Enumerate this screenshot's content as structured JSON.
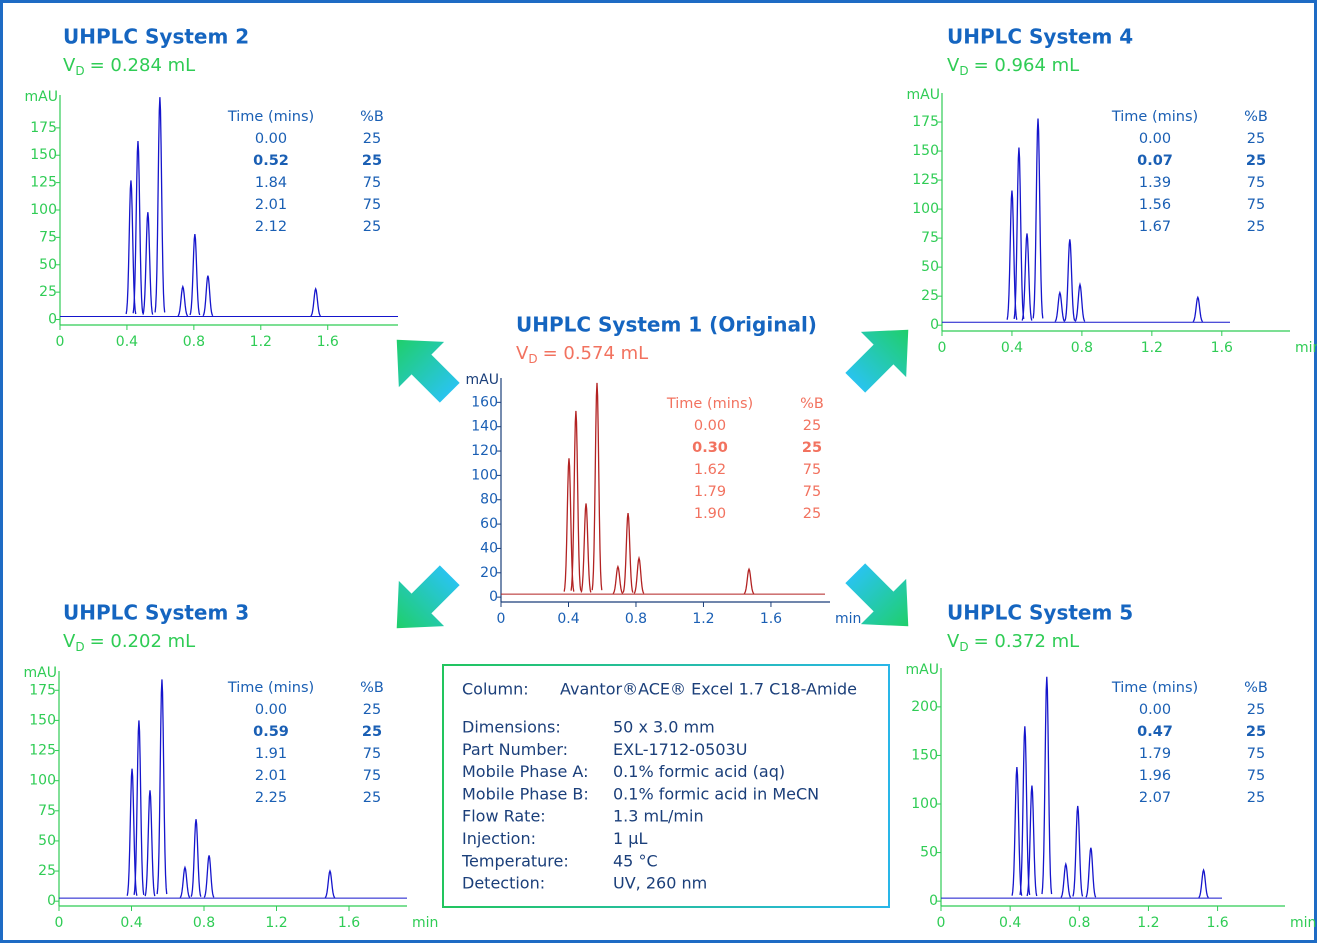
{
  "chart_data": [
    {
      "type": "chromatogram",
      "title": "UHPLC System 2",
      "vd_symbol": "V",
      "vd_sub": "D",
      "vd_value": "= 0.284 mL",
      "y_label": "mAU",
      "peaks": {
        "time": [
          0.424,
          0.466,
          0.525,
          0.597,
          0.734,
          0.806,
          0.884,
          1.528
        ],
        "height": [
          127,
          163,
          98,
          203,
          30,
          78,
          40,
          28
        ]
      },
      "xlim": [
        0,
        2.02
      ],
      "ylim": [
        -5,
        205
      ],
      "xticks": [
        0,
        0.4,
        0.8,
        1.2,
        1.6
      ],
      "yticks": [
        0,
        25,
        50,
        75,
        100,
        125,
        150,
        175
      ],
      "trace_color": "#1515cc",
      "axis_color": "#2fcc55",
      "tick_label_color": "#2fcc55",
      "title_color": "#1565c0",
      "vd_color": "#2fcc55",
      "table_color": "#1a5fb4",
      "gradient_table": {
        "header": [
          "Time (mins)",
          "%B"
        ],
        "rows": [
          [
            "0.00",
            "25"
          ],
          [
            "0.52",
            "25"
          ],
          [
            "1.84",
            "75"
          ],
          [
            "2.01",
            "75"
          ],
          [
            "2.12",
            "25"
          ]
        ]
      }
    },
    {
      "type": "chromatogram",
      "title": "UHPLC System 4",
      "vd_symbol": "V",
      "vd_sub": "D",
      "vd_value": "= 0.964 mL",
      "y_label": "mAU",
      "x_label": "min",
      "peaks": {
        "time": [
          0.4,
          0.44,
          0.486,
          0.549,
          0.674,
          0.731,
          0.789,
          1.463
        ],
        "height": [
          116,
          153,
          79,
          178,
          28,
          74,
          35,
          24
        ]
      },
      "xlim": [
        0,
        1.99
      ],
      "ylim": [
        -5,
        200
      ],
      "xticks": [
        0,
        0.4,
        0.8,
        1.2,
        1.6
      ],
      "yticks": [
        0,
        25,
        50,
        75,
        100,
        125,
        150,
        175
      ],
      "trace_color": "#1515cc",
      "axis_color": "#2fcc55",
      "tick_label_color": "#2fcc55",
      "title_color": "#1565c0",
      "vd_color": "#2fcc55",
      "table_color": "#1a5fb4",
      "gradient_table": {
        "header": [
          "Time (mins)",
          "%B"
        ],
        "rows": [
          [
            "0.00",
            "25"
          ],
          [
            "0.07",
            "25"
          ],
          [
            "1.39",
            "75"
          ],
          [
            "1.56",
            "75"
          ],
          [
            "1.67",
            "25"
          ]
        ]
      }
    },
    {
      "type": "chromatogram",
      "title": "UHPLC System 1 (Original)",
      "vd_symbol": "V",
      "vd_sub": "D",
      "vd_value": "= 0.574 mL",
      "y_label": "mAU",
      "x_label": "min",
      "peaks": {
        "time": [
          0.403,
          0.444,
          0.504,
          0.569,
          0.693,
          0.753,
          0.818,
          1.47
        ],
        "height": [
          114,
          153,
          77,
          176,
          25,
          69,
          32,
          23
        ]
      },
      "xlim": [
        0,
        1.95
      ],
      "ylim": [
        -4,
        180
      ],
      "xticks": [
        0,
        0.4,
        0.8,
        1.2,
        1.6
      ],
      "yticks": [
        0,
        20,
        40,
        60,
        80,
        100,
        120,
        140,
        160
      ],
      "trace_color": "#b22222",
      "axis_color": "#1b3f7a",
      "tick_label_color": "#1a5fb4",
      "title_color": "#1565c0",
      "vd_color": "#f2725f",
      "table_color": "#f2725f",
      "gradient_table": {
        "header": [
          "Time (mins)",
          "%B"
        ],
        "rows": [
          [
            "0.00",
            "25"
          ],
          [
            "0.30",
            "25"
          ],
          [
            "1.62",
            "75"
          ],
          [
            "1.79",
            "75"
          ],
          [
            "1.90",
            "25"
          ]
        ]
      }
    },
    {
      "type": "chromatogram",
      "title": "UHPLC System 3",
      "vd_symbol": "V",
      "vd_sub": "D",
      "vd_value": "= 0.202 mL",
      "y_label": "mAU",
      "x_label": "min",
      "peaks": {
        "time": [
          0.403,
          0.441,
          0.502,
          0.568,
          0.695,
          0.756,
          0.828,
          1.495
        ],
        "height": [
          110,
          150,
          92,
          184,
          28,
          68,
          38,
          25
        ]
      },
      "xlim": [
        0,
        1.92
      ],
      "ylim": [
        -4,
        191
      ],
      "xticks": [
        0,
        0.4,
        0.8,
        1.2,
        1.6
      ],
      "yticks": [
        0,
        25,
        50,
        75,
        100,
        125,
        150,
        175
      ],
      "trace_color": "#1515cc",
      "axis_color": "#2fcc55",
      "tick_label_color": "#2fcc55",
      "title_color": "#1565c0",
      "vd_color": "#2fcc55",
      "table_color": "#1a5fb4",
      "gradient_table": {
        "header": [
          "Time (mins)",
          "%B"
        ],
        "rows": [
          [
            "0.00",
            "25"
          ],
          [
            "0.59",
            "25"
          ],
          [
            "1.91",
            "75"
          ],
          [
            "2.01",
            "75"
          ],
          [
            "2.25",
            "25"
          ]
        ]
      }
    },
    {
      "type": "chromatogram",
      "title": "UHPLC System 5",
      "vd_symbol": "V",
      "vd_sub": "D",
      "vd_value": "= 0.372 mL",
      "y_label": "mAU",
      "x_label": "min",
      "peaks": {
        "time": [
          0.439,
          0.485,
          0.526,
          0.612,
          0.722,
          0.791,
          0.867,
          1.519
        ],
        "height": [
          138,
          180,
          119,
          231,
          38,
          98,
          55,
          32
        ]
      },
      "xlim": [
        0,
        1.99
      ],
      "ylim": [
        -5,
        240
      ],
      "xticks": [
        0,
        0.4,
        0.8,
        1.2,
        1.6
      ],
      "yticks": [
        0,
        50,
        100,
        150,
        200
      ],
      "trace_color": "#1515cc",
      "axis_color": "#2fcc55",
      "tick_label_color": "#2fcc55",
      "title_color": "#1565c0",
      "vd_color": "#2fcc55",
      "table_color": "#1a5fb4",
      "gradient_table": {
        "header": [
          "Time (mins)",
          "%B"
        ],
        "rows": [
          [
            "0.00",
            "25"
          ],
          [
            "0.47",
            "25"
          ],
          [
            "1.79",
            "75"
          ],
          [
            "1.96",
            "75"
          ],
          [
            "2.07",
            "25"
          ]
        ]
      }
    }
  ],
  "info_box": {
    "column_label": "Column:",
    "column_value": "Avantor®ACE® Excel 1.7 C18-Amide",
    "rows": [
      [
        "Dimensions:",
        "50 x 3.0 mm"
      ],
      [
        "Part Number:",
        "EXL-1712-0503U"
      ],
      [
        "Mobile Phase A:",
        "0.1% formic acid (aq)"
      ],
      [
        "Mobile Phase B:",
        "0.1% formic acid in MeCN"
      ],
      [
        "Flow Rate:",
        "1.3 mL/min"
      ],
      [
        "Injection:",
        "1 µL"
      ],
      [
        "Temperature:",
        "45 °C"
      ],
      [
        "Detection:",
        "UV, 260 nm"
      ]
    ]
  }
}
